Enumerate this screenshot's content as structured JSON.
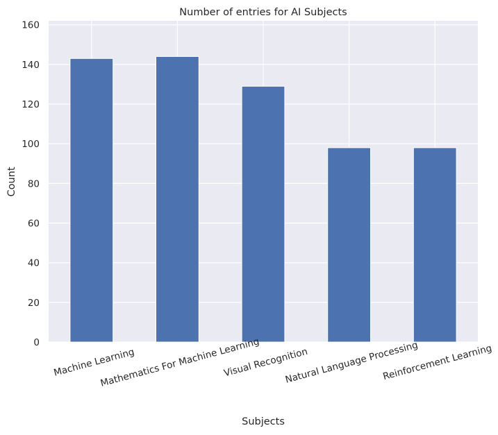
{
  "chart_data": {
    "type": "bar",
    "title": "Number of entries for AI Subjects",
    "xlabel": "Subjects",
    "ylabel": "Count",
    "categories": [
      "Machine Learning",
      "Mathematics For Machine Learning",
      "Visual Recognition",
      "Natural Language Processing",
      "Reinforcement Learning"
    ],
    "values": [
      143,
      144,
      129,
      98,
      98
    ],
    "ylim": [
      0,
      162
    ],
    "yticks": [
      0,
      20,
      40,
      60,
      80,
      100,
      120,
      140,
      160
    ],
    "grid": true,
    "legend": "none",
    "x_tick_rotation": 15,
    "colors": {
      "bar": "#4c72b0",
      "plot_background": "#eaeaf2",
      "grid": "#ffffff",
      "text": "#262626"
    }
  }
}
